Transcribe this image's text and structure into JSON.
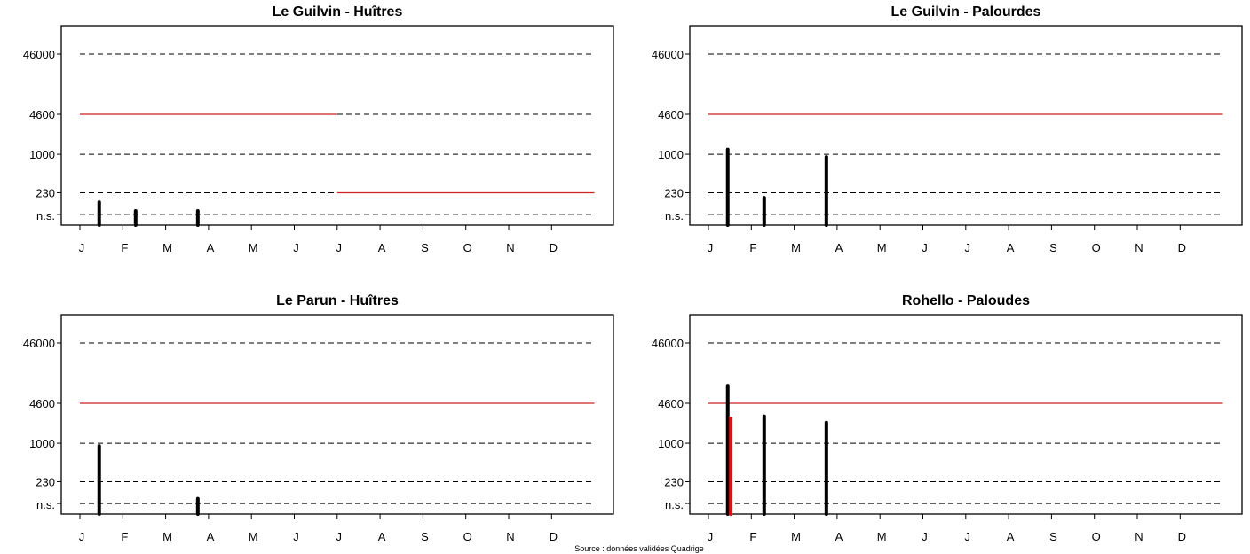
{
  "source_note": "Source : données validées Quadrige",
  "colors": {
    "threshold_red": "#cc2222",
    "bar_black": "#000000",
    "bar_red": "#dd1111",
    "ref_black": "#000000"
  },
  "chart_data": [
    {
      "type": "bar",
      "title": "Le Guilvin - Huîtres",
      "yscale": "log",
      "y_tick_labels": [
        "46000",
        "4600",
        "1000",
        "230",
        "n.s."
      ],
      "x_tick_labels": [
        "J",
        "F",
        "M",
        "A",
        "M",
        "J",
        "J",
        "A",
        "S",
        "O",
        "N",
        "D"
      ],
      "reference_lines": [
        46000,
        4600,
        1000,
        230,
        100
      ],
      "threshold_segments": [
        {
          "value": 4600,
          "from_month": 1,
          "to_month": 7
        },
        {
          "value": 230,
          "from_month": 7,
          "to_month": 13
        }
      ],
      "bars": [
        {
          "month": 1.45,
          "value": 160,
          "color": "black"
        },
        {
          "month": 2.3,
          "value": 115,
          "color": "black"
        },
        {
          "month": 3.75,
          "value": 115,
          "color": "black"
        }
      ]
    },
    {
      "type": "bar",
      "title": "Le Guilvin - Palourdes",
      "yscale": "log",
      "y_tick_labels": [
        "46000",
        "4600",
        "1000",
        "230",
        "n.s."
      ],
      "x_tick_labels": [
        "J",
        "F",
        "M",
        "A",
        "M",
        "J",
        "J",
        "A",
        "S",
        "O",
        "N",
        "D"
      ],
      "reference_lines": [
        46000,
        4600,
        1000,
        230,
        100
      ],
      "threshold_segments": [
        {
          "value": 4600,
          "from_month": 1,
          "to_month": 13
        }
      ],
      "bars": [
        {
          "month": 1.45,
          "value": 1200,
          "color": "black"
        },
        {
          "month": 2.3,
          "value": 190,
          "color": "black"
        },
        {
          "month": 3.75,
          "value": 900,
          "color": "black"
        }
      ]
    },
    {
      "type": "bar",
      "title": "Le Parun - Huîtres",
      "yscale": "log",
      "y_tick_labels": [
        "46000",
        "4600",
        "1000",
        "230",
        "n.s."
      ],
      "x_tick_labels": [
        "J",
        "F",
        "M",
        "A",
        "M",
        "J",
        "J",
        "A",
        "S",
        "O",
        "N",
        "D"
      ],
      "reference_lines": [
        46000,
        4600,
        1000,
        230,
        100
      ],
      "threshold_segments": [
        {
          "value": 4600,
          "from_month": 1,
          "to_month": 13
        }
      ],
      "bars": [
        {
          "month": 1.45,
          "value": 900,
          "color": "black"
        },
        {
          "month": 3.75,
          "value": 120,
          "color": "black"
        }
      ]
    },
    {
      "type": "bar",
      "title": "Rohello - Paloudes",
      "yscale": "log",
      "y_tick_labels": [
        "46000",
        "4600",
        "1000",
        "230",
        "n.s."
      ],
      "x_tick_labels": [
        "J",
        "F",
        "M",
        "A",
        "M",
        "J",
        "J",
        "A",
        "S",
        "O",
        "N",
        "D"
      ],
      "reference_lines": [
        46000,
        4600,
        1000,
        230,
        100
      ],
      "threshold_segments": [
        {
          "value": 4600,
          "from_month": 1,
          "to_month": 13
        }
      ],
      "bars": [
        {
          "month": 1.45,
          "value": 9000,
          "color": "black"
        },
        {
          "month": 1.52,
          "value": 2600,
          "color": "red"
        },
        {
          "month": 2.3,
          "value": 2800,
          "color": "black"
        },
        {
          "month": 3.75,
          "value": 2200,
          "color": "black"
        }
      ]
    }
  ]
}
